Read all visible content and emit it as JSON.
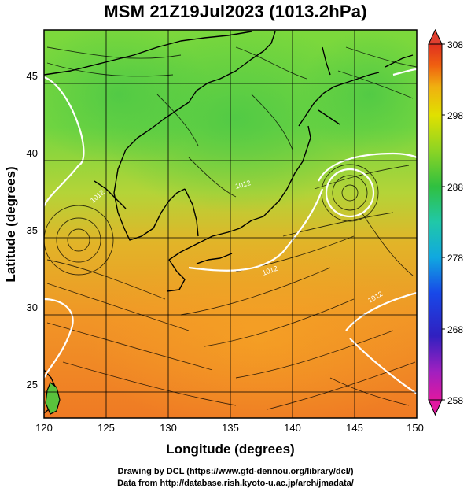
{
  "title": "MSM 21Z19Jul2023 (1013.2hPa)",
  "xlabel": "Longitude (degrees)",
  "ylabel": "Latitude  (degrees)",
  "xticks": [
    "120",
    "125",
    "130",
    "135",
    "140",
    "145",
    "150"
  ],
  "yticks": [
    "25",
    "30",
    "35",
    "40",
    "45"
  ],
  "colorbar": {
    "ticks": [
      "308",
      "298",
      "288",
      "278",
      "268",
      "258"
    ],
    "min": 258,
    "max": 308,
    "colors": [
      "#e01890",
      "#b020b0",
      "#3020c0",
      "#1040e0",
      "#10a0e0",
      "#20c0b0",
      "#30c040",
      "#80d020",
      "#e0e000",
      "#f0b010",
      "#f06010",
      "#e03020"
    ]
  },
  "contour_labels": [
    "1012",
    "1012",
    "1012",
    "1012"
  ],
  "footer": {
    "line1": "Drawing by DCL (https://www.gfd-dennou.org/library/dcl/)",
    "line2": "Data from http://database.rish.kyoto-u.ac.jp/arch/jmadata/"
  },
  "chart_data": {
    "type": "map",
    "title": "MSM 21Z19Jul2023 (1013.2hPa)",
    "xlabel": "Longitude (degrees)",
    "ylabel": "Latitude  (degrees)",
    "xlim": [
      120,
      150
    ],
    "ylim": [
      22.4,
      47.6
    ],
    "colorbar_range": [
      258,
      308
    ],
    "colorbar_ticks": [
      308,
      298,
      288,
      278,
      268,
      258
    ],
    "grid": true,
    "field": "temperature (K) with wind streamlines and 1012 hPa pressure contours"
  }
}
